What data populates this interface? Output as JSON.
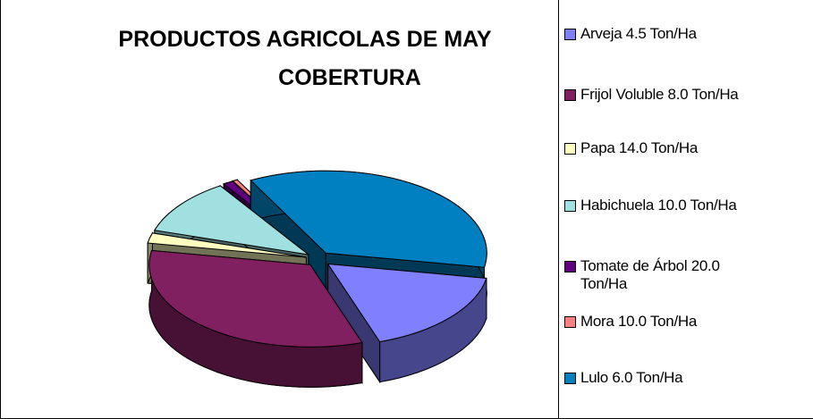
{
  "chart_data": {
    "type": "pie",
    "title": [
      "PRODUCTOS AGRICOLAS DE MAY",
      "COBERTURA"
    ],
    "categories": [
      "Arveja 4.5 Ton/Ha",
      "Frijol Voluble 8.0 Ton/Ha",
      "Papa 14.0 Ton/Ha",
      "Habichuela 10.0 Ton/Ha",
      "Tomate de Árbol 20.0 Ton/Ha",
      "Mora 10.0 Ton/Ha",
      "Lulo 6.0 Ton/Ha"
    ],
    "values": [
      17,
      33,
      2,
      11,
      1,
      0.5,
      35.5
    ],
    "colors": [
      "#8080ff",
      "#802060",
      "#ffffc0",
      "#a0e0e0",
      "#600080",
      "#ff8080",
      "#0080c0"
    ],
    "legend": "right"
  }
}
